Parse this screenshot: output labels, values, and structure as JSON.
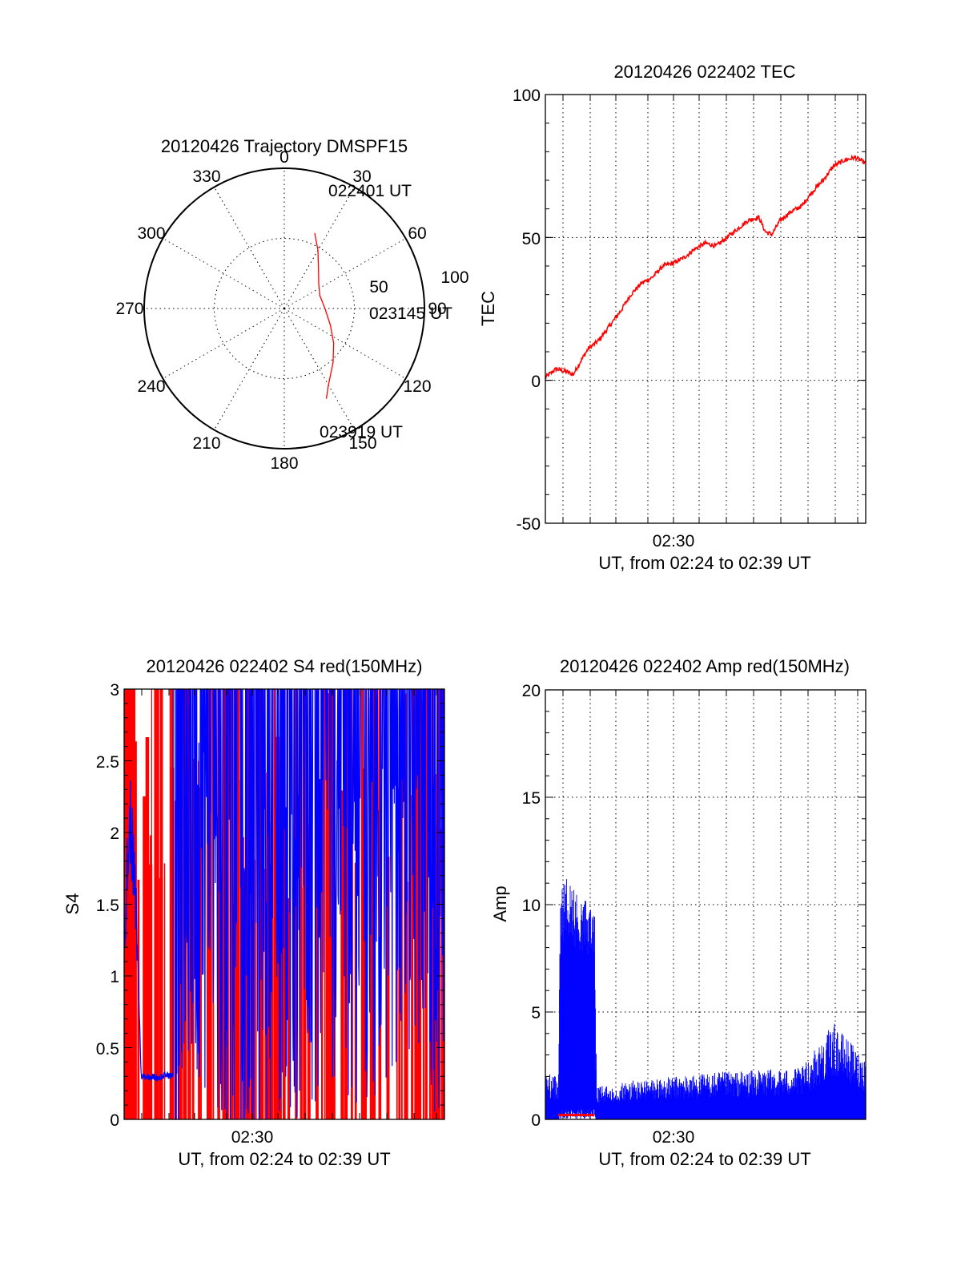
{
  "colors": {
    "red": "#ff0000",
    "blue": "#0000ff",
    "axis": "#000000",
    "background": "#ffffff"
  },
  "chart_data": [
    {
      "id": "trajectory",
      "type": "polar",
      "title": "20120426 Trajectory DMSPF15",
      "angle_labels": [
        "0",
        "30",
        "60",
        "90",
        "120",
        "150",
        "180",
        "210",
        "240",
        "270",
        "300",
        "330"
      ],
      "angle_values": [
        0,
        30,
        60,
        90,
        120,
        150,
        180,
        210,
        240,
        270,
        300,
        330
      ],
      "radial_labels": [
        "50",
        "100"
      ],
      "radial_values": [
        50,
        100
      ],
      "radial_max": 100,
      "grid": true,
      "track": {
        "color": "#ff0000",
        "points": [
          [
            22,
            58
          ],
          [
            30,
            48
          ],
          [
            40,
            38
          ],
          [
            55,
            30
          ],
          [
            70,
            27
          ],
          [
            90,
            29
          ],
          [
            110,
            35
          ],
          [
            125,
            43
          ],
          [
            138,
            52
          ],
          [
            150,
            63
          ],
          [
            155,
            71
          ]
        ]
      },
      "annotations": [
        {
          "text": "022401 UT",
          "angle": 22,
          "radius": 58
        },
        {
          "text": "023145 UT",
          "angle": 90,
          "radius": 29
        },
        {
          "text": "023919 UT",
          "angle": 155,
          "radius": 71
        }
      ]
    },
    {
      "id": "tec",
      "type": "line",
      "title": "20120426 022402 TEC",
      "xlabel": "UT, from 02:24 to 02:39 UT",
      "ylabel": "TEC",
      "x_tick_labels": [
        "02:30"
      ],
      "x_tick_values": [
        6
      ],
      "x_minutes": [
        0,
        15
      ],
      "ylim": [
        -50,
        100
      ],
      "y_ticks": [
        -50,
        0,
        50,
        100
      ],
      "grid": true,
      "series": [
        {
          "color": "#ff0000",
          "x": [
            0,
            0.5,
            1,
            1.3,
            1.6,
            2,
            2.5,
            3,
            3.5,
            4,
            4.5,
            5,
            5.5,
            6,
            6.5,
            7,
            7.5,
            8,
            8.5,
            9,
            9.5,
            10,
            10.3,
            10.6,
            11,
            11.5,
            12,
            12.5,
            13,
            13.5,
            14,
            14.5,
            15
          ],
          "y": [
            1,
            4,
            3,
            2,
            6,
            11,
            14,
            19,
            24,
            30,
            34,
            36,
            40,
            41,
            43,
            46,
            48,
            47,
            50,
            53,
            56,
            57,
            52,
            51,
            56,
            59,
            61,
            66,
            70,
            75,
            77,
            78,
            76
          ]
        }
      ]
    },
    {
      "id": "s4",
      "type": "line",
      "title": "20120426 022402 S4 red(150MHz)",
      "xlabel": "UT, from 02:24 to 02:39 UT",
      "ylabel": "S4",
      "x_tick_labels": [
        "02:30"
      ],
      "x_tick_values": [
        6
      ],
      "x_minutes": [
        0,
        15
      ],
      "ylim": [
        0,
        3
      ],
      "y_ticks": [
        "0",
        "0.5",
        "1",
        "1.5",
        "2",
        "2.5",
        "3"
      ],
      "grid": false,
      "series": [
        {
          "color": "#ff0000",
          "x": [
            0,
            15
          ],
          "y_range": [
            0,
            3
          ],
          "note_level": [
            0,
            3
          ]
        },
        {
          "color": "#0000ff",
          "x": [
            0,
            0.3,
            0.6,
            0.8,
            1.2,
            1.6,
            2.0,
            2.3,
            3,
            4,
            5,
            6,
            7,
            8,
            9,
            10,
            11,
            12,
            13,
            14,
            15
          ],
          "y": [
            1.4,
            2.1,
            1.3,
            0.3,
            0.3,
            0.29,
            0.31,
            0.3,
            2.8,
            2.5,
            2.2,
            2.0,
            2.3,
            2.4,
            2.5,
            2.6,
            2.4,
            2.5,
            2.6,
            2.7,
            2.2
          ]
        }
      ]
    },
    {
      "id": "amp",
      "type": "line",
      "title": "20120426 022402 Amp red(150MHz)",
      "xlabel": "UT, from 02:24 to 02:39 UT",
      "ylabel": "Amp",
      "x_tick_labels": [
        "02:30"
      ],
      "x_tick_values": [
        6
      ],
      "x_minutes": [
        0,
        15
      ],
      "ylim": [
        0,
        20
      ],
      "y_ticks": [
        0,
        5,
        10,
        15,
        20
      ],
      "grid": true,
      "series": [
        {
          "color": "#0000ff",
          "x": [
            0,
            0.6,
            0.7,
            1.0,
            1.5,
            2.0,
            2.3,
            2.4,
            4,
            6,
            8,
            10,
            12,
            13.5,
            15
          ],
          "y": [
            2.2,
            2.0,
            10.5,
            11.5,
            10.5,
            10.2,
            10.0,
            1.5,
            1.8,
            2.0,
            2.2,
            2.3,
            2.4,
            4.5,
            2.8
          ]
        },
        {
          "color": "#ff0000",
          "x": [
            0.6,
            2.3
          ],
          "y": [
            0.2,
            0.2
          ]
        }
      ]
    }
  ]
}
